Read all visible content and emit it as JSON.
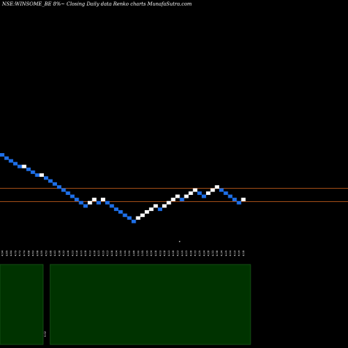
{
  "header": {
    "title": "NSE:WINSOME_BE 8%~  Closing Daily data  Renko  charts MunafaSutra.com"
  },
  "chart_data": {
    "type": "renko",
    "title": "NSE:WINSOME_BE 8%~  Closing Daily data  Renko  charts MunafaSutra.com",
    "price_range": [
      3.55,
      4.97
    ],
    "price_scale": "log",
    "reference_lines": [
      4.36,
      4.15
    ],
    "bricks": [
      {
        "top": 4.97,
        "bottom": 4.91,
        "dir": "down"
      },
      {
        "top": 4.91,
        "bottom": 4.86,
        "dir": "down"
      },
      {
        "top": 4.86,
        "bottom": 4.81,
        "dir": "down"
      },
      {
        "top": 4.81,
        "bottom": 4.76,
        "dir": "down"
      },
      {
        "top": 4.76,
        "bottom": 4.71,
        "dir": "down"
      },
      {
        "top": 4.76,
        "bottom": 4.71,
        "dir": "up"
      },
      {
        "top": 4.71,
        "bottom": 4.66,
        "dir": "down"
      },
      {
        "top": 4.66,
        "bottom": 4.61,
        "dir": "down"
      },
      {
        "top": 4.61,
        "bottom": 4.56,
        "dir": "down"
      },
      {
        "top": 4.61,
        "bottom": 4.56,
        "dir": "up"
      },
      {
        "top": 4.56,
        "bottom": 4.51,
        "dir": "down"
      },
      {
        "top": 4.51,
        "bottom": 4.46,
        "dir": "down"
      },
      {
        "top": 4.46,
        "bottom": 4.41,
        "dir": "down"
      },
      {
        "top": 4.41,
        "bottom": 4.36,
        "dir": "down"
      },
      {
        "top": 4.36,
        "bottom": 4.31,
        "dir": "down"
      },
      {
        "top": 4.31,
        "bottom": 4.26,
        "dir": "down"
      },
      {
        "top": 4.26,
        "bottom": 4.21,
        "dir": "down"
      },
      {
        "top": 4.21,
        "bottom": 4.16,
        "dir": "down"
      },
      {
        "top": 4.16,
        "bottom": 4.11,
        "dir": "down"
      },
      {
        "top": 4.11,
        "bottom": 4.06,
        "dir": "down"
      },
      {
        "top": 4.16,
        "bottom": 4.11,
        "dir": "up"
      },
      {
        "top": 4.21,
        "bottom": 4.16,
        "dir": "up"
      },
      {
        "top": 4.16,
        "bottom": 4.11,
        "dir": "down"
      },
      {
        "top": 4.21,
        "bottom": 4.16,
        "dir": "up"
      },
      {
        "top": 4.16,
        "bottom": 4.11,
        "dir": "down"
      },
      {
        "top": 4.11,
        "bottom": 4.06,
        "dir": "down"
      },
      {
        "top": 4.06,
        "bottom": 4.02,
        "dir": "down"
      },
      {
        "top": 4.02,
        "bottom": 3.97,
        "dir": "down"
      },
      {
        "top": 3.97,
        "bottom": 3.93,
        "dir": "down"
      },
      {
        "top": 3.93,
        "bottom": 3.88,
        "dir": "down"
      },
      {
        "top": 3.88,
        "bottom": 3.84,
        "dir": "down"
      },
      {
        "top": 3.93,
        "bottom": 3.88,
        "dir": "up"
      },
      {
        "top": 3.97,
        "bottom": 3.93,
        "dir": "up"
      },
      {
        "top": 4.02,
        "bottom": 3.97,
        "dir": "up"
      },
      {
        "top": 4.06,
        "bottom": 4.02,
        "dir": "up"
      },
      {
        "top": 4.11,
        "bottom": 4.06,
        "dir": "up"
      },
      {
        "top": 4.06,
        "bottom": 4.02,
        "dir": "down"
      },
      {
        "top": 4.11,
        "bottom": 4.06,
        "dir": "up"
      },
      {
        "top": 4.16,
        "bottom": 4.11,
        "dir": "up"
      },
      {
        "top": 4.21,
        "bottom": 4.16,
        "dir": "up"
      },
      {
        "top": 4.26,
        "bottom": 4.21,
        "dir": "up"
      },
      {
        "top": 4.21,
        "bottom": 4.16,
        "dir": "down"
      },
      {
        "top": 4.26,
        "bottom": 4.21,
        "dir": "up"
      },
      {
        "top": 4.31,
        "bottom": 4.26,
        "dir": "up"
      },
      {
        "top": 4.36,
        "bottom": 4.31,
        "dir": "up"
      },
      {
        "top": 4.31,
        "bottom": 4.26,
        "dir": "down"
      },
      {
        "top": 4.26,
        "bottom": 4.21,
        "dir": "down"
      },
      {
        "top": 4.31,
        "bottom": 4.26,
        "dir": "up"
      },
      {
        "top": 4.36,
        "bottom": 4.31,
        "dir": "up"
      },
      {
        "top": 4.41,
        "bottom": 4.36,
        "dir": "up"
      },
      {
        "top": 4.36,
        "bottom": 4.31,
        "dir": "down"
      },
      {
        "top": 4.31,
        "bottom": 4.26,
        "dir": "down"
      },
      {
        "top": 4.26,
        "bottom": 4.21,
        "dir": "down"
      },
      {
        "top": 4.21,
        "bottom": 4.16,
        "dir": "down"
      },
      {
        "top": 4.16,
        "bottom": 4.11,
        "dir": "down"
      },
      {
        "top": 4.21,
        "bottom": 4.16,
        "dir": "up"
      }
    ],
    "x_tick_labels": [
      "4.94",
      "4.89",
      "4.84",
      "4.79",
      "4.73",
      "4.74",
      "4.68",
      "4.63",
      "4.58",
      "4.59",
      "4.53",
      "4.48",
      "4.43",
      "4.38",
      "4.33",
      "4.28",
      "4.23",
      "4.18",
      "4.13",
      "4.08",
      "4.13",
      "4.18",
      "4.13",
      "4.19",
      "4.13",
      "4.08",
      "4.04",
      "3.99",
      "3.95",
      "3.90",
      "3.86",
      "3.90",
      "3.95",
      "3.99",
      "4.04",
      "4.08",
      "4.03",
      "4.08",
      "4.13",
      "4.18",
      "4.23",
      "4.19",
      "4.23",
      "4.28",
      "4.33",
      "4.29",
      "4.24",
      "4.28",
      "4.33",
      "4.38",
      "4.34",
      "4.29",
      "4.24",
      "4.19",
      "4.14",
      "4.18"
    ],
    "colors": {
      "up": "#ffffff",
      "down": "#1e6fe8",
      "reference_line": "#b2561a",
      "volume_fill": "#003300",
      "volume_border": "#1a5a1a",
      "background": "#000000"
    },
    "volume_panel": {
      "label": "0.02"
    },
    "mid_marker": "a"
  }
}
